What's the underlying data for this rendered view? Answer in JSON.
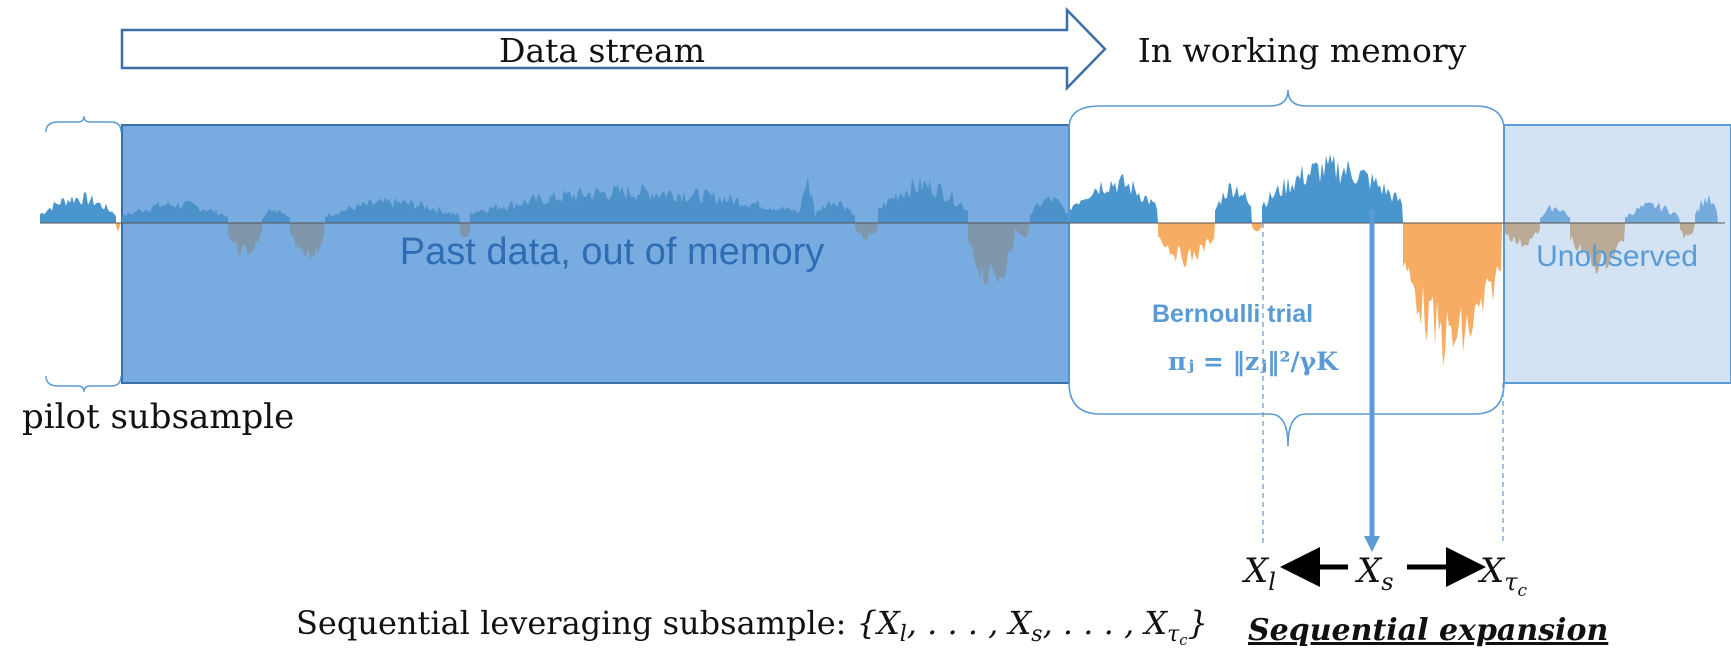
{
  "labels": {
    "data_stream": "Data stream",
    "in_working_memory": "In working memory",
    "past_data": "Past data, out of memory",
    "unobserved": "Unobserved",
    "pilot_subsample": "pilot subsample",
    "bernoulli_trial": "Bernoulli trial",
    "pi_formula": "πⱼ = ‖zⱼ‖²/γK",
    "sequential_expansion": "Sequential expansion",
    "subsample_prefix": "Sequential leveraging subsample: ",
    "subsample_set": "{X",
    "x_l": "X",
    "x_l_sub": "l",
    "x_s": "X",
    "x_s_sub": "s",
    "x_tau": "X",
    "x_tau_sub": "τ",
    "x_tau_subsub": "c"
  },
  "colors": {
    "accent_blue": "#3f8fcb",
    "past_fill": "#6fa6da",
    "unobserved_fill": "#cfe0f2",
    "negative_orange": "#f6a85a",
    "outline_blue": "#4a7fb8"
  }
}
